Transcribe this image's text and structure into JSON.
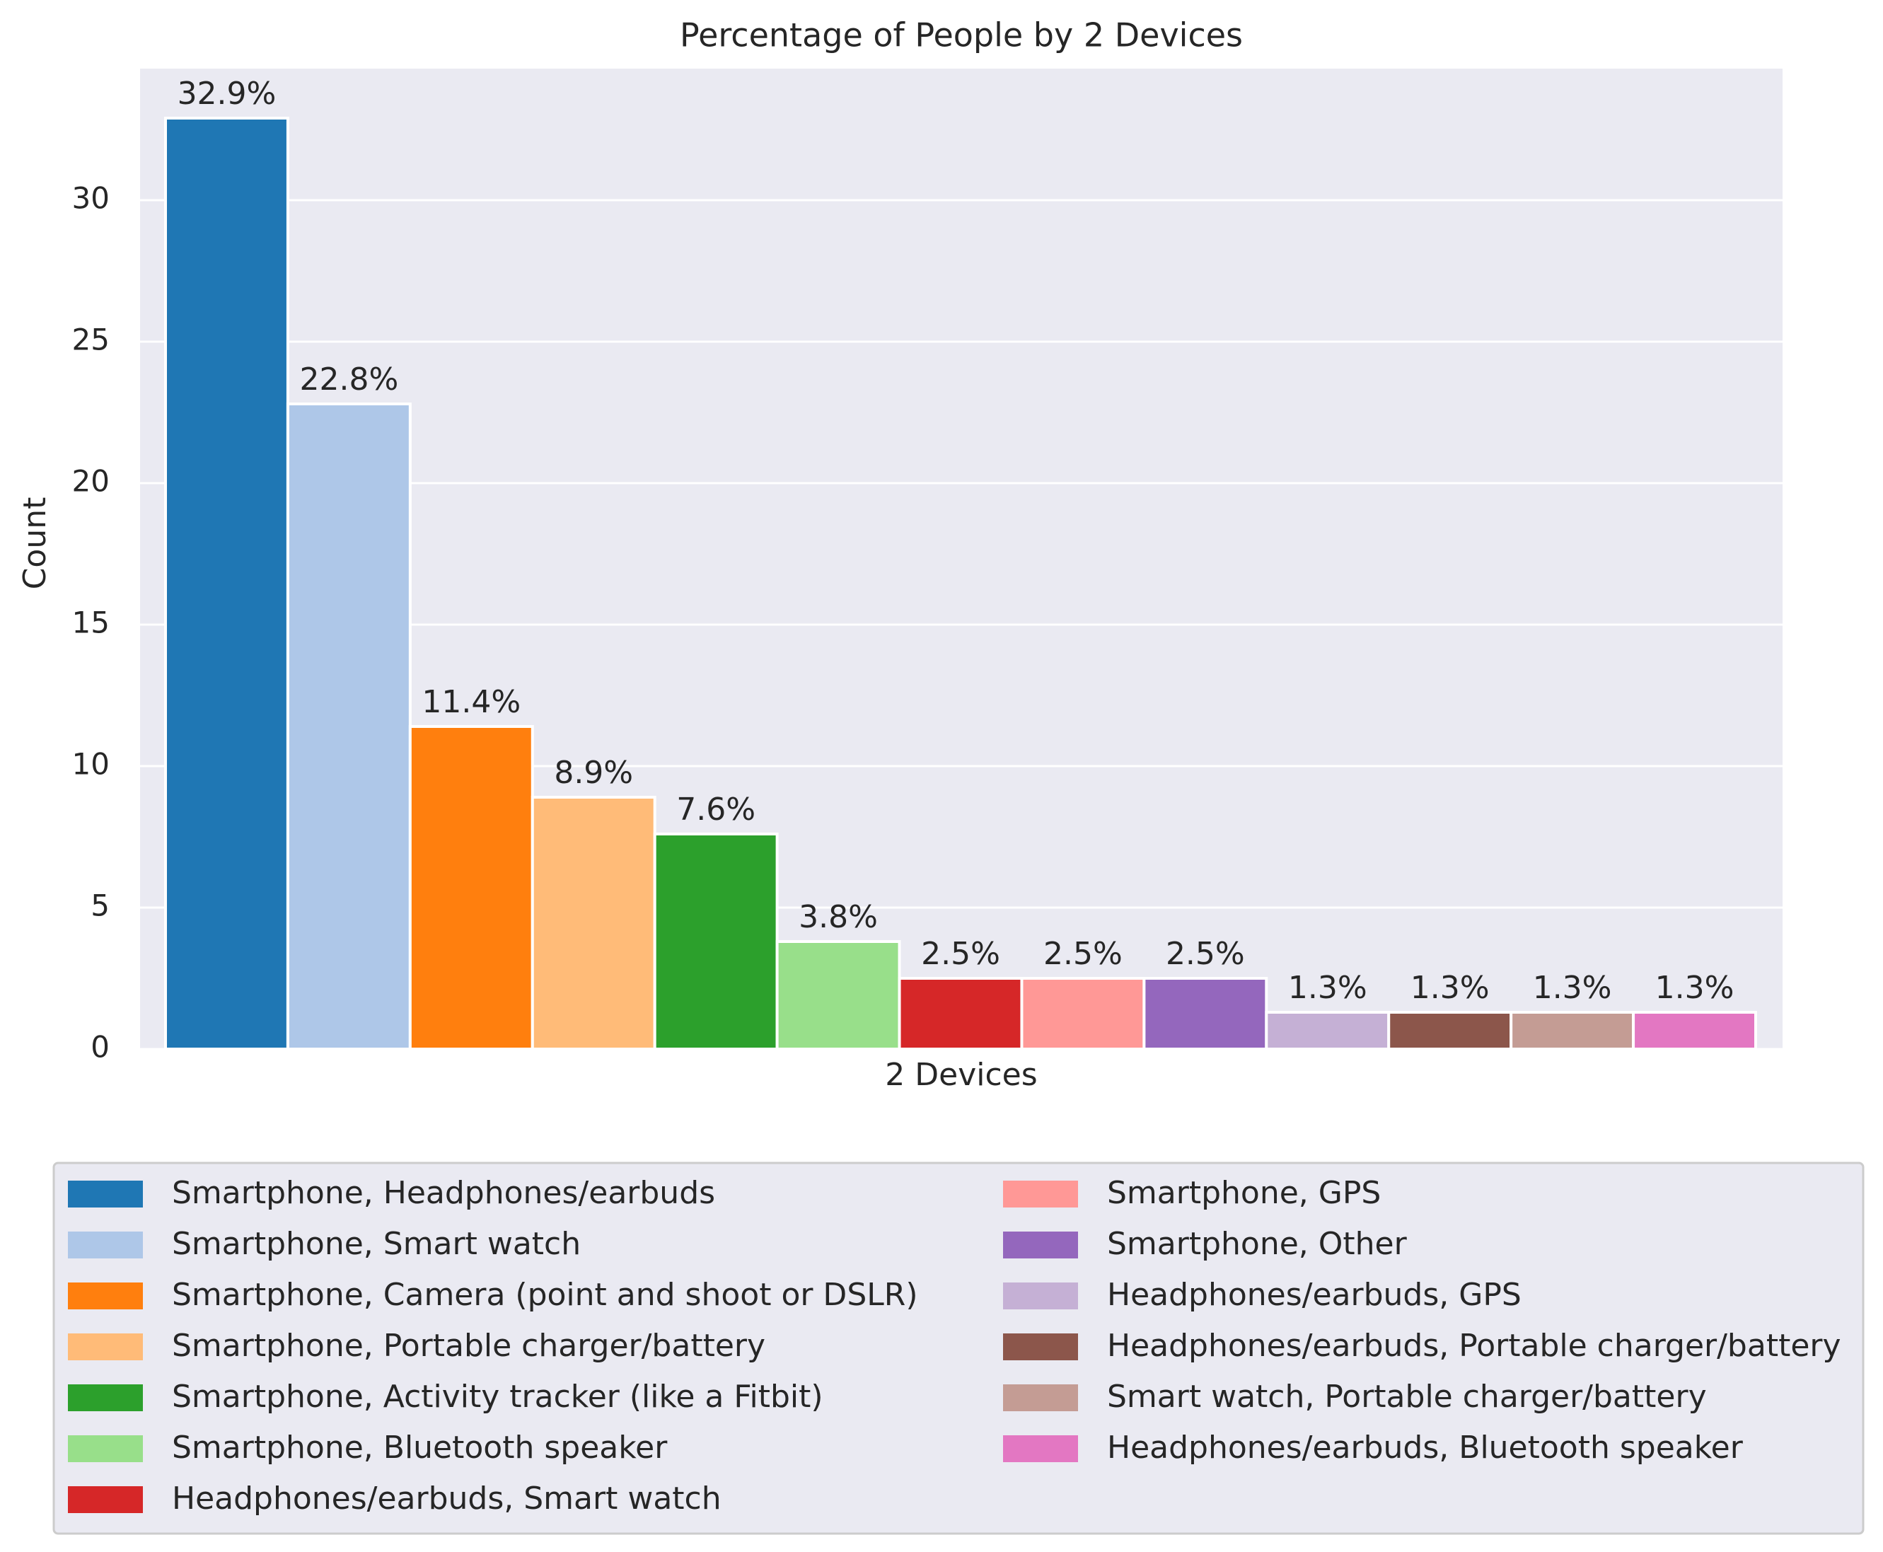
{
  "chart_data": {
    "type": "bar",
    "title": "Percentage of People by 2 Devices",
    "xlabel": "2 Devices",
    "ylabel": "Count",
    "ylim": [
      0,
      33
    ],
    "yticks": [
      0,
      5,
      10,
      15,
      20,
      25,
      30
    ],
    "grid": true,
    "legend_position": "bottom",
    "series": [
      {
        "name": "Smartphone, Headphones/earbuds",
        "value": 32.9,
        "label": "32.9%",
        "color": "#1f77b4"
      },
      {
        "name": "Smartphone, Smart watch",
        "value": 22.8,
        "label": "22.8%",
        "color": "#aec7e8"
      },
      {
        "name": "Smartphone, Camera (point and shoot or DSLR)",
        "value": 11.4,
        "label": "11.4%",
        "color": "#ff7f0e"
      },
      {
        "name": "Smartphone, Portable charger/battery",
        "value": 8.9,
        "label": "8.9%",
        "color": "#ffbb78"
      },
      {
        "name": "Smartphone, Activity tracker (like a Fitbit)",
        "value": 7.6,
        "label": "7.6%",
        "color": "#2ca02c"
      },
      {
        "name": "Smartphone, Bluetooth speaker",
        "value": 3.8,
        "label": "3.8%",
        "color": "#98df8a"
      },
      {
        "name": "Headphones/earbuds, Smart watch",
        "value": 2.5,
        "label": "2.5%",
        "color": "#d62728"
      },
      {
        "name": "Smartphone, GPS",
        "value": 2.5,
        "label": "2.5%",
        "color": "#ff9896"
      },
      {
        "name": "Smartphone, Other",
        "value": 2.5,
        "label": "2.5%",
        "color": "#9467bd"
      },
      {
        "name": "Headphones/earbuds, GPS",
        "value": 1.3,
        "label": "1.3%",
        "color": "#c5b0d5"
      },
      {
        "name": "Headphones/earbuds, Portable charger/battery",
        "value": 1.3,
        "label": "1.3%",
        "color": "#8c564b"
      },
      {
        "name": "Smart watch, Portable charger/battery",
        "value": 1.3,
        "label": "1.3%",
        "color": "#c49c94"
      },
      {
        "name": "Headphones/earbuds, Bluetooth speaker",
        "value": 1.3,
        "label": "1.3%",
        "color": "#e377c2"
      }
    ]
  }
}
